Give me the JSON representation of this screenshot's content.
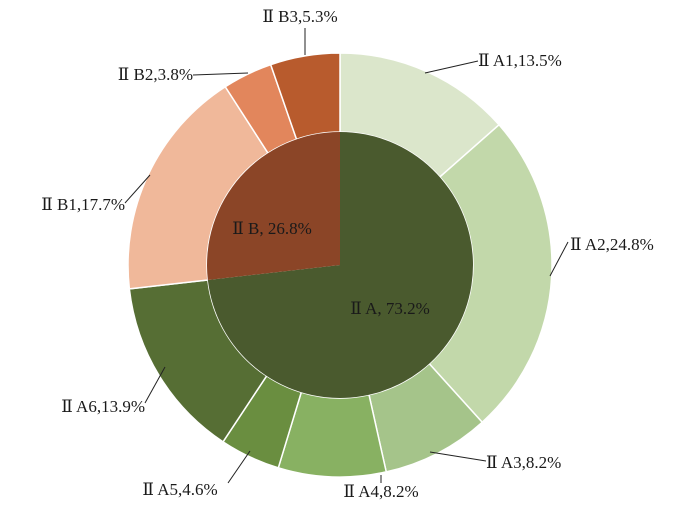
{
  "chart_data": {
    "type": "pie",
    "subtype": "sunburst-donut",
    "title": "",
    "inner_ring": [
      {
        "label": "Ⅱ A, 73.2%",
        "name": "Ⅱ A",
        "value": 73.2,
        "color": "#4a5a2e"
      },
      {
        "label": "Ⅱ B, 26.8%",
        "name": "Ⅱ B",
        "value": 26.8,
        "color": "#8b4527"
      }
    ],
    "outer_ring": [
      {
        "label": "Ⅱ A1,13.5%",
        "name": "Ⅱ A1",
        "value": 13.5,
        "parent": "Ⅱ A",
        "color": "#dbe6cb"
      },
      {
        "label": "Ⅱ A2,24.8%",
        "name": "Ⅱ A2",
        "value": 24.8,
        "parent": "Ⅱ A",
        "color": "#c2d8aa"
      },
      {
        "label": "Ⅱ A3,8.2%",
        "name": "Ⅱ A3",
        "value": 8.2,
        "parent": "Ⅱ A",
        "color": "#a5c48a"
      },
      {
        "label": "Ⅱ A4,8.2%",
        "name": "Ⅱ A4",
        "value": 8.2,
        "parent": "Ⅱ A",
        "color": "#88b162"
      },
      {
        "label": "Ⅱ A5,4.6%",
        "name": "Ⅱ A5",
        "value": 4.6,
        "parent": "Ⅱ A",
        "color": "#6a8e40"
      },
      {
        "label": "Ⅱ A6,13.9%",
        "name": "Ⅱ A6",
        "value": 13.9,
        "parent": "Ⅱ A",
        "color": "#566e34"
      },
      {
        "label": "Ⅱ B1,17.7%",
        "name": "Ⅱ B1",
        "value": 17.7,
        "parent": "Ⅱ B",
        "color": "#f0b89a"
      },
      {
        "label": "Ⅱ B2,3.8%",
        "name": "Ⅱ B2",
        "value": 3.8,
        "parent": "Ⅱ B",
        "color": "#e2865c"
      },
      {
        "label": "Ⅱ B3,5.3%",
        "name": "Ⅱ B3",
        "value": 5.3,
        "parent": "Ⅱ B",
        "color": "#b85b2d"
      }
    ],
    "start_angle": "12 o'clock",
    "direction": "clockwise",
    "legend": "none"
  }
}
